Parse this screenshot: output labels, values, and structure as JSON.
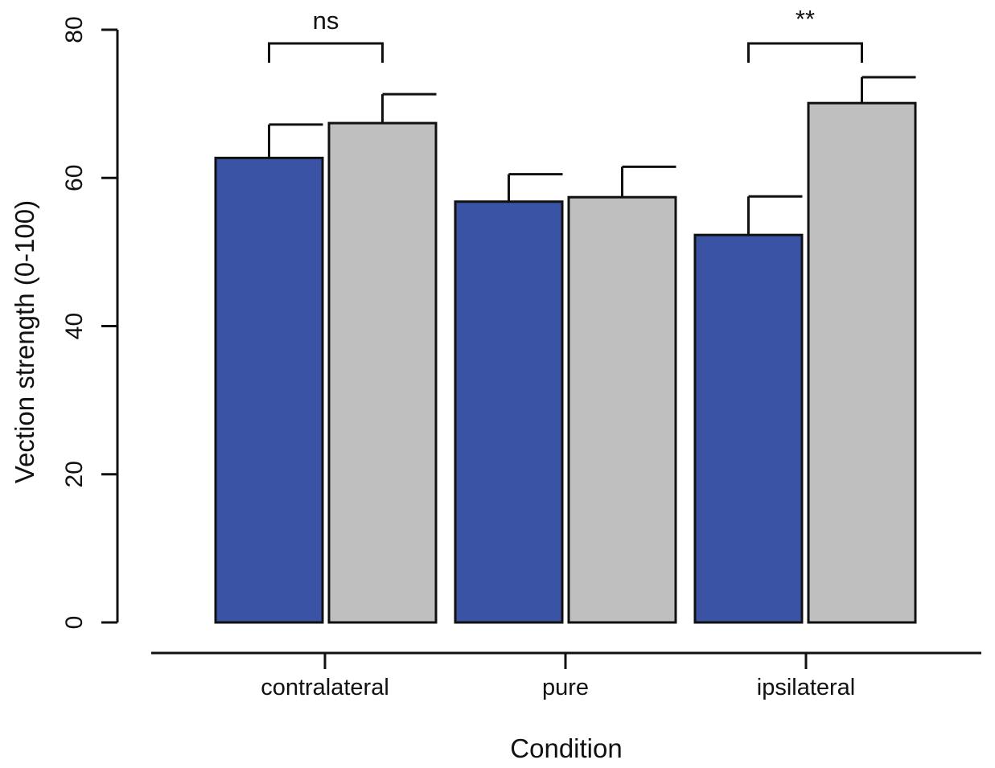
{
  "chart_data": {
    "type": "bar",
    "title": "",
    "xlabel": "Condition",
    "ylabel": "Vection strength (0-100)",
    "ylim": [
      0,
      80
    ],
    "yticks": [
      0,
      20,
      40,
      60,
      80
    ],
    "ytick_labels": [
      "0",
      "20",
      "40",
      "60",
      "80"
    ],
    "categories": [
      "contralateral",
      "pure",
      "ipsilateral"
    ],
    "series": [
      {
        "name": "series 1",
        "color": "#3a53a4",
        "values": [
          62.7,
          56.8,
          52.3
        ],
        "errors": [
          4.5,
          3.7,
          5.2
        ]
      },
      {
        "name": "series 2",
        "color": "#c0bfc0",
        "values": [
          67.4,
          57.4,
          70.1
        ],
        "errors": [
          3.9,
          4.1,
          3.5
        ]
      }
    ],
    "significance": [
      {
        "category": "contralateral",
        "label": "ns"
      },
      {
        "category": "pure",
        "label": ""
      },
      {
        "category": "ipsilateral",
        "label": "**"
      }
    ],
    "grid": false,
    "legend": "none"
  }
}
